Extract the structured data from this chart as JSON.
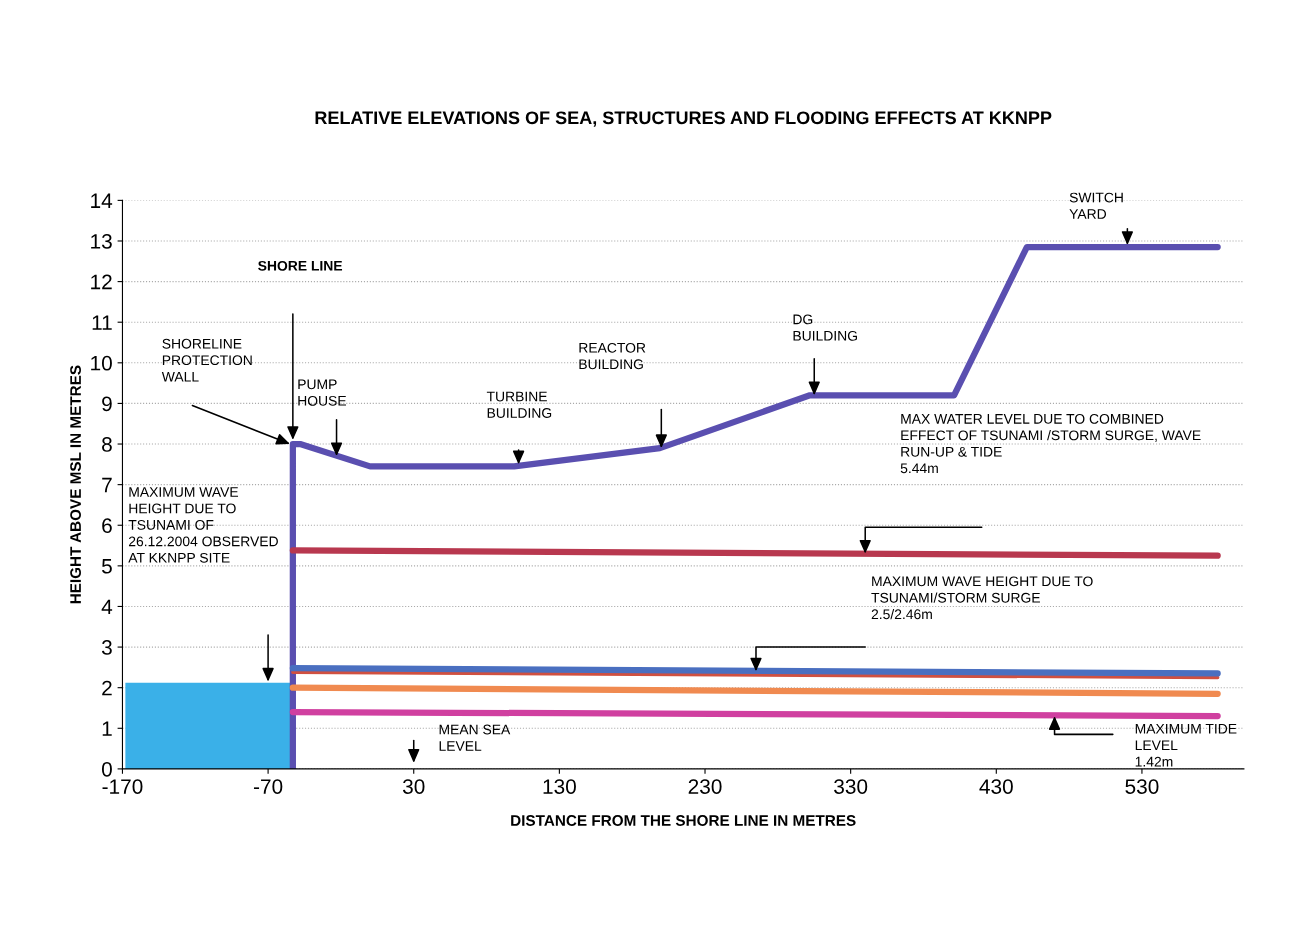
{
  "chart_data": {
    "type": "line",
    "title": "RELATIVE ELEVATIONS OF SEA, STRUCTURES AND FLOODING EFFECTS AT KKNPP",
    "xlabel": "DISTANCE FROM THE SHORE LINE IN METRES",
    "ylabel": "HEIGHT ABOVE MSL IN METRES",
    "xlim": [
      -170,
      600
    ],
    "ylim": [
      0,
      14
    ],
    "xticks": [
      -170,
      -70,
      30,
      130,
      230,
      330,
      430,
      530
    ],
    "yticks": [
      0,
      1,
      2,
      3,
      4,
      5,
      6,
      7,
      8,
      9,
      10,
      11,
      12,
      13,
      14
    ],
    "grid": "y",
    "line_style": "solid",
    "series": [
      {
        "type": "area",
        "color": "#3ab0e8",
        "x": [
          -168,
          -53
        ],
        "values": [
          2.12,
          2.12
        ]
      },
      {
        "color": "#5a4fb0",
        "x": [
          -53,
          -53,
          -48,
          0,
          99,
          199,
          302,
          401,
          451,
          582
        ],
        "values": [
          0,
          8,
          8,
          7.45,
          7.45,
          7.9,
          9.2,
          9.2,
          12.85,
          12.85
        ]
      },
      {
        "color": "#b8384f",
        "x": [
          -53,
          582
        ],
        "values": [
          5.38,
          5.25
        ]
      },
      {
        "color": "#d05040",
        "x": [
          -53,
          582
        ],
        "values": [
          2.38,
          2.25
        ]
      },
      {
        "color": "#4a6fc0",
        "x": [
          -53,
          582
        ],
        "values": [
          2.48,
          2.35
        ]
      },
      {
        "color": "#f08a50",
        "x": [
          -53,
          582
        ],
        "values": [
          2.0,
          1.85
        ]
      },
      {
        "color": "#d040a0",
        "x": [
          -53,
          582
        ],
        "values": [
          1.4,
          1.3
        ]
      }
    ],
    "annotations": [
      "SHORE LINE",
      "SHORELINE\nPROTECTION\nWALL",
      {
        "text": "PUMP\nHOUSE",
        "x": -23,
        "y": 7.7
      },
      "TURBINE\nBUILDING",
      "REACTOR\nBUILDING",
      {
        "text": "DG\nBUILDING",
        "x": 305,
        "y": 9.2
      },
      {
        "text": "SWITCH\nYARD",
        "x": 520,
        "y": 12.9
      },
      "MAX WATER LEVEL DUE TO COMBINED\nEFFECT OF TSUNAMI /STORM SURGE, WAVE\nRUN-UP & TIDE\n5.44m",
      "MAXIMUM WAVE HEIGHT DUE TO\nTSUNAMI/STORM SURGE\n2.5/2.46m",
      "MEAN SEA\nLEVEL",
      "MAXIMUM TIDE\nLEVEL\n1.42m",
      "MAXIMUM WAVE\nHEIGHT DUE TO\nTSUNAMI OF\n26.12.2004 OBSERVED\nAT KKNPP SITE"
    ]
  }
}
